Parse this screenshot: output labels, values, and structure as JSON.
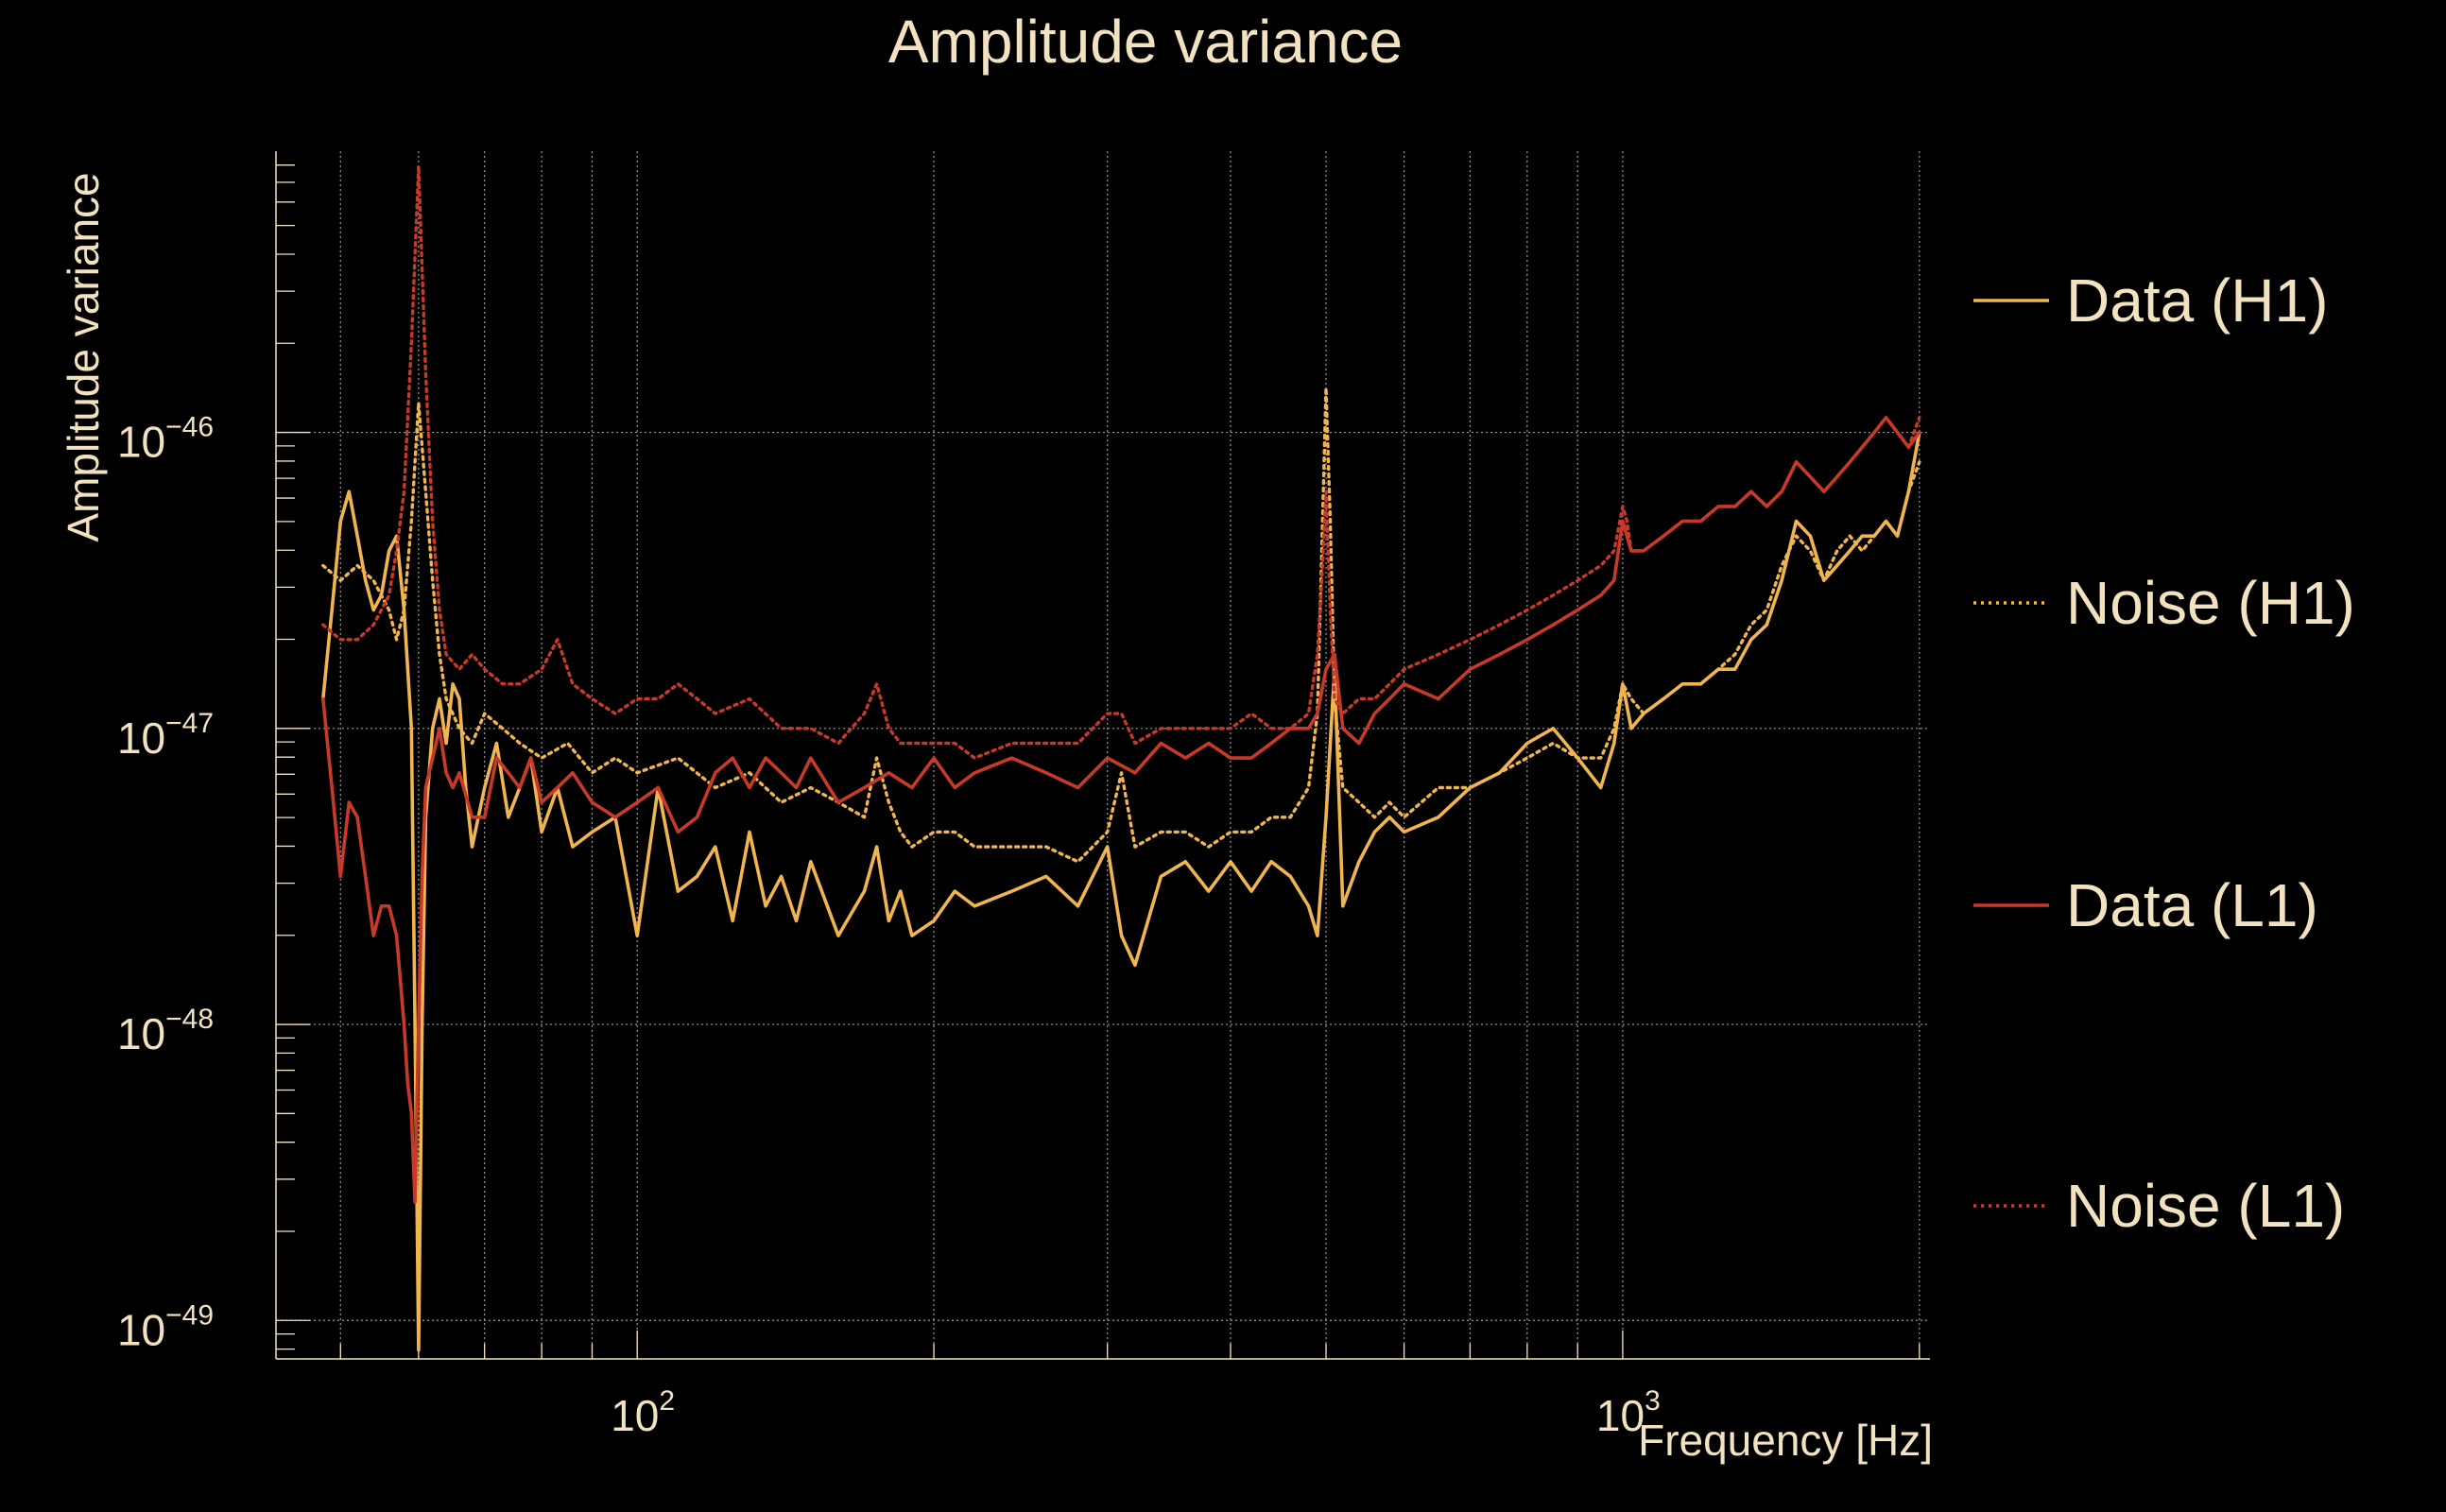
{
  "chart_data": {
    "type": "line",
    "title": "Amplitude variance",
    "xlabel": "Frequency [Hz]",
    "ylabel": "Amplitude variance",
    "xscale": "log",
    "yscale": "log",
    "xlim": [
      43,
      2050
    ],
    "ylim_log10": [
      -49.13,
      -45.05
    ],
    "grid": true,
    "x_ticks": [
      {
        "base": "10",
        "exp": "2",
        "value": 100
      },
      {
        "base": "10",
        "exp": "3",
        "value": 1000
      }
    ],
    "y_ticks": [
      {
        "base": "10",
        "exp": "−49",
        "value": -49
      },
      {
        "base": "10",
        "exp": "−48",
        "value": -48
      },
      {
        "base": "10",
        "exp": "−47",
        "value": -47
      },
      {
        "base": "10",
        "exp": "−46",
        "value": -46
      }
    ],
    "legend": {
      "position": "right"
    },
    "colors": {
      "h1": "#f0b54f",
      "l1": "#c8392a",
      "text": "#f3e2c0",
      "grid": "#9a9a9a",
      "background": "#000000"
    },
    "y_units": "log10(amplitude variance)",
    "series": [
      {
        "name": "Data (H1)",
        "color": "#f0b54f",
        "style": "solid",
        "x": [
          48,
          49,
          50,
          51,
          52,
          53,
          54,
          55,
          56,
          57,
          58,
          59,
          59.5,
          60,
          60.5,
          61,
          62,
          63,
          64,
          65,
          66,
          67,
          68,
          70,
          72,
          74,
          76,
          78,
          80,
          83,
          86,
          90,
          95,
          100,
          105,
          110,
          115,
          120,
          125,
          130,
          135,
          140,
          145,
          150,
          160,
          170,
          175,
          180,
          185,
          190,
          200,
          210,
          220,
          240,
          260,
          280,
          300,
          310,
          320,
          340,
          360,
          380,
          400,
          420,
          440,
          460,
          480,
          490,
          500,
          510,
          520,
          540,
          560,
          580,
          600,
          650,
          700,
          750,
          800,
          850,
          900,
          950,
          980,
          1000,
          1020,
          1050,
          1100,
          1150,
          1200,
          1250,
          1300,
          1350,
          1400,
          1450,
          1500,
          1550,
          1600,
          1650,
          1700,
          1750,
          1800,
          1850,
          1900,
          1950,
          2000
        ],
        "y": [
          -46.9,
          -46.6,
          -46.3,
          -46.2,
          -46.35,
          -46.5,
          -46.6,
          -46.55,
          -46.4,
          -46.35,
          -46.6,
          -47.0,
          -48.0,
          -49.1,
          -48.0,
          -47.3,
          -47.0,
          -46.9,
          -47.05,
          -46.85,
          -46.9,
          -47.2,
          -47.4,
          -47.2,
          -47.05,
          -47.3,
          -47.2,
          -47.1,
          -47.35,
          -47.2,
          -47.4,
          -47.35,
          -47.3,
          -47.7,
          -47.2,
          -47.55,
          -47.5,
          -47.4,
          -47.65,
          -47.35,
          -47.6,
          -47.5,
          -47.65,
          -47.45,
          -47.7,
          -47.55,
          -47.4,
          -47.65,
          -47.55,
          -47.7,
          -47.65,
          -47.55,
          -47.6,
          -47.55,
          -47.5,
          -47.6,
          -47.4,
          -47.7,
          -47.8,
          -47.5,
          -47.45,
          -47.55,
          -47.45,
          -47.55,
          -47.45,
          -47.5,
          -47.6,
          -47.7,
          -47.3,
          -46.8,
          -47.6,
          -47.45,
          -47.35,
          -47.3,
          -47.35,
          -47.3,
          -47.2,
          -47.15,
          -47.05,
          -47.0,
          -47.1,
          -47.2,
          -47.05,
          -46.85,
          -47.0,
          -46.95,
          -46.9,
          -46.85,
          -46.85,
          -46.8,
          -46.8,
          -46.7,
          -46.65,
          -46.5,
          -46.3,
          -46.35,
          -46.5,
          -46.45,
          -46.4,
          -46.35,
          -46.35,
          -46.3,
          -46.35,
          -46.2,
          -46.0
        ]
      },
      {
        "name": "Noise (H1)",
        "color": "#f0b54f",
        "style": "dotted",
        "x": [
          48,
          50,
          52,
          54,
          56,
          57,
          58,
          59,
          60,
          61,
          62,
          63,
          64,
          66,
          68,
          70,
          73,
          76,
          80,
          85,
          90,
          95,
          100,
          110,
          120,
          130,
          140,
          150,
          160,
          170,
          175,
          180,
          185,
          190,
          200,
          210,
          220,
          240,
          260,
          280,
          300,
          310,
          320,
          340,
          360,
          380,
          400,
          420,
          440,
          460,
          480,
          490,
          495,
          500,
          505,
          510,
          520,
          540,
          560,
          580,
          600,
          650,
          700,
          750,
          800,
          850,
          900,
          950,
          980,
          1000,
          1020,
          1050,
          1100,
          1150,
          1200,
          1250,
          1300,
          1350,
          1400,
          1450,
          1500,
          1550,
          1600,
          1650,
          1700,
          1750,
          1800,
          1850,
          1900,
          1950,
          2000
        ],
        "y": [
          -46.45,
          -46.5,
          -46.45,
          -46.5,
          -46.6,
          -46.7,
          -46.6,
          -46.3,
          -45.9,
          -46.2,
          -46.5,
          -46.75,
          -46.9,
          -47.0,
          -47.05,
          -46.95,
          -47.0,
          -47.05,
          -47.1,
          -47.05,
          -47.15,
          -47.1,
          -47.15,
          -47.1,
          -47.2,
          -47.15,
          -47.25,
          -47.2,
          -47.25,
          -47.3,
          -47.1,
          -47.25,
          -47.35,
          -47.4,
          -47.35,
          -47.35,
          -47.4,
          -47.4,
          -47.4,
          -47.45,
          -47.35,
          -47.15,
          -47.4,
          -47.35,
          -47.35,
          -47.4,
          -47.35,
          -47.35,
          -47.3,
          -47.3,
          -47.2,
          -46.95,
          -46.4,
          -45.85,
          -46.3,
          -46.9,
          -47.2,
          -47.25,
          -47.3,
          -47.25,
          -47.3,
          -47.2,
          -47.2,
          -47.15,
          -47.1,
          -47.05,
          -47.1,
          -47.1,
          -47.0,
          -46.85,
          -46.9,
          -46.95,
          -46.9,
          -46.85,
          -46.85,
          -46.8,
          -46.75,
          -46.65,
          -46.6,
          -46.45,
          -46.35,
          -46.4,
          -46.5,
          -46.4,
          -46.35,
          -46.4,
          -46.35,
          -46.3,
          -46.35,
          -46.2,
          -46.1
        ]
      },
      {
        "name": "Data (L1)",
        "color": "#c8392a",
        "style": "solid",
        "x": [
          48,
          49,
          50,
          51,
          52,
          53,
          54,
          55,
          56,
          57,
          58,
          58.5,
          59,
          59.5,
          60,
          60.5,
          61,
          62,
          63,
          64,
          65,
          66,
          68,
          70,
          72,
          74,
          76,
          78,
          80,
          83,
          86,
          90,
          95,
          100,
          105,
          110,
          115,
          120,
          125,
          130,
          135,
          140,
          145,
          150,
          160,
          170,
          180,
          190,
          200,
          210,
          220,
          240,
          260,
          280,
          300,
          320,
          340,
          360,
          380,
          400,
          420,
          440,
          460,
          480,
          490,
          500,
          510,
          520,
          540,
          560,
          580,
          600,
          650,
          700,
          750,
          800,
          850,
          900,
          950,
          980,
          1000,
          1020,
          1050,
          1100,
          1150,
          1200,
          1250,
          1300,
          1350,
          1400,
          1450,
          1500,
          1550,
          1600,
          1650,
          1700,
          1750,
          1800,
          1850,
          1900,
          1950,
          2000
        ],
        "y": [
          -46.9,
          -47.2,
          -47.5,
          -47.25,
          -47.3,
          -47.5,
          -47.7,
          -47.6,
          -47.6,
          -47.7,
          -48.0,
          -48.2,
          -48.3,
          -48.6,
          -48.0,
          -47.5,
          -47.2,
          -47.1,
          -47.0,
          -47.15,
          -47.2,
          -47.15,
          -47.3,
          -47.3,
          -47.1,
          -47.15,
          -47.2,
          -47.1,
          -47.25,
          -47.2,
          -47.15,
          -47.25,
          -47.3,
          -47.25,
          -47.2,
          -47.35,
          -47.3,
          -47.15,
          -47.1,
          -47.2,
          -47.1,
          -47.15,
          -47.2,
          -47.1,
          -47.25,
          -47.2,
          -47.15,
          -47.2,
          -47.1,
          -47.2,
          -47.15,
          -47.1,
          -47.15,
          -47.2,
          -47.1,
          -47.15,
          -47.05,
          -47.1,
          -47.05,
          -47.1,
          -47.1,
          -47.05,
          -47.0,
          -47.0,
          -46.95,
          -46.8,
          -46.75,
          -47.0,
          -47.05,
          -46.95,
          -46.9,
          -46.85,
          -46.9,
          -46.8,
          -46.75,
          -46.7,
          -46.65,
          -46.6,
          -46.55,
          -46.5,
          -46.3,
          -46.4,
          -46.4,
          -46.35,
          -46.3,
          -46.3,
          -46.25,
          -46.25,
          -46.2,
          -46.25,
          -46.2,
          -46.1,
          -46.15,
          -46.2,
          -46.15,
          -46.1,
          -46.05,
          -46.0,
          -45.95,
          -46.0,
          -46.05,
          -46.0
        ]
      },
      {
        "name": "Noise (L1)",
        "color": "#c8392a",
        "style": "dotted",
        "x": [
          48,
          50,
          52,
          54,
          56,
          57,
          58,
          59,
          60,
          61,
          62,
          63,
          64,
          66,
          68,
          70,
          73,
          76,
          80,
          83,
          86,
          90,
          95,
          100,
          105,
          110,
          115,
          120,
          130,
          140,
          150,
          160,
          170,
          175,
          180,
          185,
          190,
          200,
          210,
          220,
          240,
          260,
          280,
          300,
          310,
          320,
          340,
          360,
          380,
          400,
          420,
          440,
          460,
          480,
          490,
          495,
          500,
          505,
          510,
          520,
          540,
          560,
          580,
          600,
          650,
          700,
          750,
          800,
          850,
          900,
          950,
          980,
          1000,
          1010,
          1020,
          1050,
          1100,
          1150,
          1200,
          1250,
          1300,
          1350,
          1400,
          1450,
          1500,
          1550,
          1600,
          1650,
          1700,
          1750,
          1800,
          1850,
          1900,
          1950,
          2000
        ],
        "y": [
          -46.65,
          -46.7,
          -46.7,
          -46.65,
          -46.55,
          -46.4,
          -46.2,
          -45.7,
          -45.1,
          -45.8,
          -46.3,
          -46.6,
          -46.75,
          -46.8,
          -46.75,
          -46.8,
          -46.85,
          -46.85,
          -46.8,
          -46.7,
          -46.85,
          -46.9,
          -46.95,
          -46.9,
          -46.9,
          -46.85,
          -46.9,
          -46.95,
          -46.9,
          -47.0,
          -47.0,
          -47.05,
          -46.95,
          -46.85,
          -47.0,
          -47.05,
          -47.05,
          -47.05,
          -47.05,
          -47.1,
          -47.05,
          -47.05,
          -47.05,
          -46.95,
          -46.95,
          -47.05,
          -47.0,
          -47.0,
          -47.0,
          -47.0,
          -46.95,
          -47.0,
          -47.0,
          -46.95,
          -46.75,
          -46.5,
          -46.2,
          -46.6,
          -46.9,
          -46.95,
          -46.9,
          -46.9,
          -46.85,
          -46.8,
          -46.75,
          -46.7,
          -46.65,
          -46.6,
          -46.55,
          -46.5,
          -46.45,
          -46.4,
          -46.25,
          -46.3,
          -46.4,
          -46.4,
          -46.35,
          -46.3,
          -46.3,
          -46.25,
          -46.25,
          -46.2,
          -46.25,
          -46.2,
          -46.1,
          -46.15,
          -46.2,
          -46.15,
          -46.1,
          -46.05,
          -46.0,
          -45.95,
          -46.0,
          -46.05,
          -45.95
        ]
      }
    ]
  }
}
